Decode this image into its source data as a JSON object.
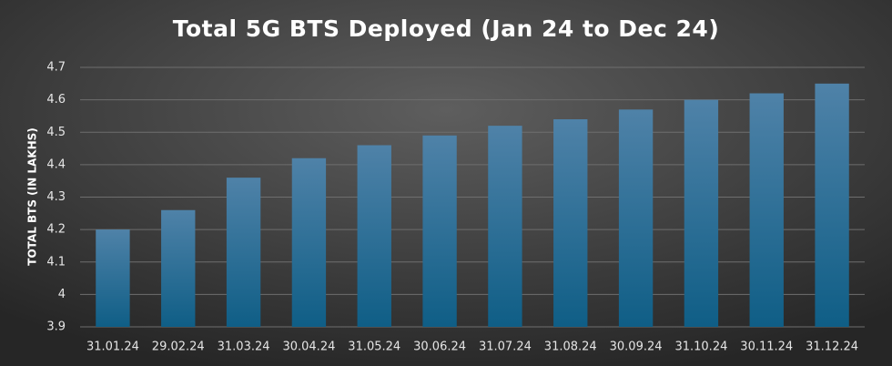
{
  "chart_data": {
    "type": "bar",
    "title": "Total 5G BTS Deployed (Jan 24 to Dec 24)",
    "y_label": "TOTAL BTS (IN LAKHS)",
    "categories": [
      "31.01.24",
      "29.02.24",
      "31.03.24",
      "30.04.24",
      "31.05.24",
      "30.06.24",
      "31.07.24",
      "31.08.24",
      "30.09.24",
      "31.10.24",
      "30.11.24",
      "31.12.24"
    ],
    "values": [
      4.2,
      4.26,
      4.36,
      4.42,
      4.46,
      4.49,
      4.52,
      4.54,
      4.57,
      4.6,
      4.62,
      4.65
    ],
    "color": "#0f5e86",
    "ylim": [
      3.9,
      4.7
    ],
    "yticks": [
      3.9,
      4,
      4.1,
      4.2,
      4.3,
      4.4,
      4.5,
      4.6,
      4.7
    ],
    "grid": true
  }
}
